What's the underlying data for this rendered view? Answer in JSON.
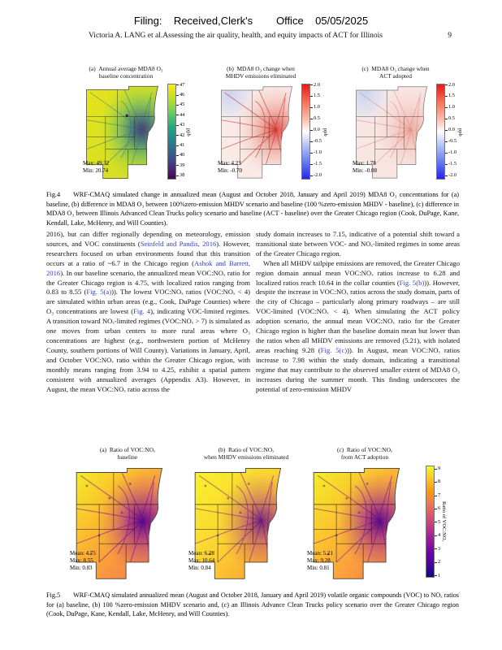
{
  "colors": {
    "link_blue": "#3340c0",
    "stamp_text": "#000000"
  },
  "header": {
    "stamp": "Filing:    Received,Clerk's        Office    05/05/2025",
    "running_title": "Victoria A. LANG et al.Assessing the air quality, health, and equity impacts of ACT for Illinois",
    "page_number": "9"
  },
  "fig4": {
    "caption_label": "Fig.4",
    "caption_text": "WRF-CMAQ simulated change in annualized mean (August and October 2018, January and April 2019) MDA8 O₃ concentrations for (a) baseline, (b) difference in MDA8 O₃ between 100%zero-emission MHDV scenario and baseline (100 %zero-emission MHDV - baseline), (c) difference in MDA8 O₃ between Illinois Advanced Clean Trucks policy scenario and baseline (ACT - baseline) over the Greater Chicago region (Cook, DuPage, Kane, Kendall, Lake, McHenry, and Will Counties).",
    "colormap_a": "viridis",
    "colormap_bc": "red-white-blue",
    "panels": [
      {
        "label": "(a)",
        "t1": "Annual average MDA8 O₃",
        "t2": "baseline concentration",
        "max": "Max: 49.32",
        "min": "Min: 20.74",
        "cbar_ticks": [
          "47",
          "46",
          "45",
          "44",
          "43",
          "42",
          "41",
          "40",
          "39",
          "38"
        ],
        "cbar_unit": "ppb"
      },
      {
        "label": "(b)",
        "t1": "MDA8 O₃ change when",
        "t2": "MHDV emissions eliminated",
        "max": "Max: 4.23",
        "min": "Min: -0.70",
        "cbar_ticks": [
          "2.0",
          "1.5",
          "1.0",
          "0.5",
          "0.0",
          "-0.5",
          "-1.0",
          "-1.5",
          "-2.0"
        ],
        "cbar_unit": "ppb"
      },
      {
        "label": "(c)",
        "t1": "MDA8 O₃ change when",
        "t2": "ACT adopted",
        "max": "Max: 1.78",
        "min": "Min: -0.08",
        "cbar_ticks": [
          "2.0",
          "1.5",
          "1.0",
          "0.5",
          "0.0",
          "-0.5",
          "-1.0",
          "-1.5",
          "-2.0"
        ],
        "cbar_unit": "ppb"
      }
    ]
  },
  "body": {
    "left_p1": [
      {
        "t": "2016), but can differ regionally depending on meteorology, emission sources, and VOC constituents ("
      },
      {
        "t": "Seinfeld and Pandis, 2016",
        "link": true
      },
      {
        "t": "). However, researchers focused on urban environments found that this transition occurs at a ratio of ~6.7 in the Chicago region ("
      },
      {
        "t": "Ashok and Barrett, 2016",
        "link": true
      },
      {
        "t": "). In our baseline scenario, the annualized mean VOC:NOₓ ratio for the Greater Chicago region is 4.75, with localized ratios ranging from 0.83 to 8.55 ("
      },
      {
        "t": "Fig. 5(a)",
        "link": true
      },
      {
        "t": ")). The lowest VOC:NOₓ ratios (VOC:NOₓ < 4) are simulated within urban areas (e.g., Cook, DuPage Counties) where O₃ concentrations are lowest ("
      },
      {
        "t": "Fig. 4",
        "link": true
      },
      {
        "t": "), indicating VOC-limited regimes. A transition toward NOₓ-limited regimes (VOC:NOₓ > 7) is simulated as one moves from urban centers to more rural areas where O₃ concentrations are highest (e.g., northwestern portion of McHenry County, southern portions of Will County). Variations in January, April, and October VOC:NOₓ ratio within the Greater Chicago region, with monthly means ranging from 3.94 to 4.25, exhibit a spatial pattern consistent with annualized averages (Appendix A3). However, in August, the mean VOC:NOₓ ratio across the"
      }
    ],
    "right_p1": [
      {
        "t": "study domain increases to 7.15, indicative of a potential shift toward a transitional state between VOC- and NOₓ-limited regimes in some areas of the Greater Chicago region."
      }
    ],
    "right_p2": [
      {
        "t": "When all MHDV tailpipe emissions are removed, the Greater Chicago region domain annual mean VOC:NOₓ ratios increase to 6.28 and localized ratios reach 10.64 in the collar counties ("
      },
      {
        "t": "Fig. 5(b)",
        "link": true
      },
      {
        "t": ")). However, despite the increase in VOC:NOₓ ratios across the study domain, parts of the city of Chicago – particularly along primary roadways – are still VOC-limited (VOC:NOₓ < 4). When simulating the ACT policy adoption scenario, the annual mean VOC:NOₓ ratio for the Greater Chicago region is higher than the baseline domain mean but lower than the ratios when all MHDV emissions are removed (5.21), with isolated areas reaching 9.28 ("
      },
      {
        "t": "Fig. 5(c)",
        "link": true
      },
      {
        "t": ")). In August, mean VOC:NOₓ ratios increase to 7.98 within the study domain, indicating a transitional regime that may contribute to the observed smaller extent of MDA8 O₃ increases during the summer month. This finding underscores the potential of zero-emission MHDV"
      }
    ]
  },
  "fig5": {
    "caption_label": "Fig.5",
    "caption_text": "WRF-CMAQ simulated annualized mean (August and October 2018, January and April 2019) volatile organic compounds (VOC) to NOₓ ratios for (a) baseline, (b) 100 %zero-emission MHDV scenario and, (c) an Illinois Advance Clean Trucks policy scenario over the Greater Chicago region (Cook, DuPage, Kane, Kendall, Lake, McHenry, and Will Counties).",
    "colormap": "plasma",
    "panels": [
      {
        "label": "(a)",
        "t1": "Ratio of VOC:NOₓ",
        "t2": "baseline",
        "mean": "Mean: 4.75",
        "max": "Max: 8.55",
        "min": "Min: 0.83"
      },
      {
        "label": "(b)",
        "t1": "Ratio of VOC:NOₓ",
        "t2": "when MHDV emissions eliminated",
        "mean": "Mean: 6.28",
        "max": "Max: 10.64",
        "min": "Min: 0.84"
      },
      {
        "label": "(c)",
        "t1": "Ratio of VOC:NOₓ",
        "t2": "from ACT adoption",
        "mean": "Mean: 5.21",
        "max": "Max: 9.28",
        "min": "Min: 0.81"
      }
    ],
    "colorbar": {
      "ticks": [
        "9",
        "8",
        "7",
        "6",
        "5",
        "4",
        "3",
        "2",
        "1"
      ],
      "label": "Ratio of VOC:NOₓ"
    }
  }
}
